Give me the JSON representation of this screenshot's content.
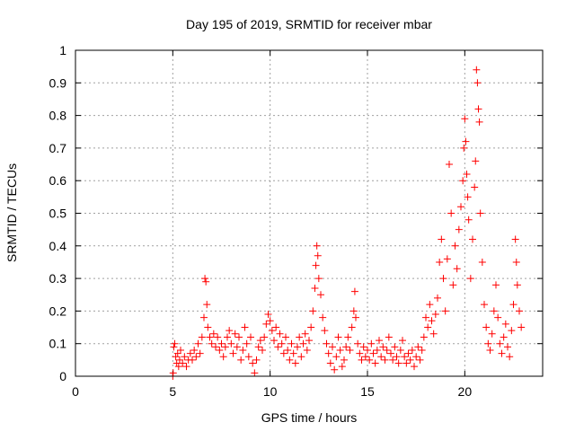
{
  "chart_data": {
    "type": "scatter",
    "title": "Day 195 of 2019, SRMTID for receiver mbar",
    "xlabel": "GPS time / hours",
    "ylabel": "SRMTID / TECUs",
    "xlim": [
      0,
      24
    ],
    "ylim": [
      0,
      1
    ],
    "x_ticks": [
      0,
      5,
      10,
      15,
      20
    ],
    "y_ticks": [
      0,
      0.1,
      0.2,
      0.3,
      0.4,
      0.5,
      0.6,
      0.7,
      0.8,
      0.9,
      1
    ],
    "x_tick_labels": [
      "0",
      "5",
      "10",
      "15",
      "20"
    ],
    "y_tick_labels": [
      "0",
      "0.1",
      "0.2",
      "0.3",
      "0.4",
      "0.5",
      "0.6",
      "0.7",
      "0.8",
      "0.9",
      "1"
    ],
    "grid": true,
    "marker": "+",
    "color": "#ff0000",
    "series": [
      {
        "name": "SRMTID",
        "points": [
          [
            5.0,
            0.0
          ],
          [
            5.02,
            0.01
          ],
          [
            5.05,
            0.09
          ],
          [
            5.1,
            0.1
          ],
          [
            5.15,
            0.06
          ],
          [
            5.2,
            0.04
          ],
          [
            5.25,
            0.07
          ],
          [
            5.3,
            0.03
          ],
          [
            5.35,
            0.05
          ],
          [
            5.4,
            0.08
          ],
          [
            5.5,
            0.04
          ],
          [
            5.6,
            0.06
          ],
          [
            5.7,
            0.03
          ],
          [
            5.8,
            0.05
          ],
          [
            5.9,
            0.07
          ],
          [
            6.0,
            0.05
          ],
          [
            6.1,
            0.08
          ],
          [
            6.2,
            0.06
          ],
          [
            6.3,
            0.1
          ],
          [
            6.4,
            0.07
          ],
          [
            6.5,
            0.12
          ],
          [
            6.6,
            0.18
          ],
          [
            6.65,
            0.3
          ],
          [
            6.7,
            0.29
          ],
          [
            6.75,
            0.22
          ],
          [
            6.8,
            0.15
          ],
          [
            6.9,
            0.12
          ],
          [
            7.0,
            0.1
          ],
          [
            7.1,
            0.13
          ],
          [
            7.2,
            0.09
          ],
          [
            7.3,
            0.12
          ],
          [
            7.4,
            0.08
          ],
          [
            7.5,
            0.1
          ],
          [
            7.6,
            0.06
          ],
          [
            7.7,
            0.09
          ],
          [
            7.8,
            0.12
          ],
          [
            7.9,
            0.14
          ],
          [
            8.0,
            0.1
          ],
          [
            8.1,
            0.07
          ],
          [
            8.2,
            0.13
          ],
          [
            8.3,
            0.09
          ],
          [
            8.4,
            0.12
          ],
          [
            8.5,
            0.05
          ],
          [
            8.6,
            0.08
          ],
          [
            8.7,
            0.15
          ],
          [
            8.8,
            0.1
          ],
          [
            8.9,
            0.06
          ],
          [
            9.0,
            0.12
          ],
          [
            9.1,
            0.04
          ],
          [
            9.2,
            0.01
          ],
          [
            9.3,
            0.05
          ],
          [
            9.4,
            0.09
          ],
          [
            9.5,
            0.11
          ],
          [
            9.6,
            0.08
          ],
          [
            9.7,
            0.12
          ],
          [
            9.8,
            0.16
          ],
          [
            9.9,
            0.19
          ],
          [
            10.0,
            0.17
          ],
          [
            10.1,
            0.14
          ],
          [
            10.2,
            0.11
          ],
          [
            10.3,
            0.15
          ],
          [
            10.4,
            0.09
          ],
          [
            10.5,
            0.13
          ],
          [
            10.6,
            0.1
          ],
          [
            10.7,
            0.07
          ],
          [
            10.8,
            0.12
          ],
          [
            10.9,
            0.08
          ],
          [
            11.0,
            0.05
          ],
          [
            11.1,
            0.1
          ],
          [
            11.2,
            0.07
          ],
          [
            11.3,
            0.04
          ],
          [
            11.4,
            0.09
          ],
          [
            11.5,
            0.12
          ],
          [
            11.6,
            0.06
          ],
          [
            11.7,
            0.1
          ],
          [
            11.8,
            0.13
          ],
          [
            11.9,
            0.08
          ],
          [
            12.0,
            0.11
          ],
          [
            12.1,
            0.15
          ],
          [
            12.2,
            0.2
          ],
          [
            12.3,
            0.27
          ],
          [
            12.35,
            0.34
          ],
          [
            12.4,
            0.4
          ],
          [
            12.45,
            0.37
          ],
          [
            12.5,
            0.3
          ],
          [
            12.6,
            0.25
          ],
          [
            12.7,
            0.18
          ],
          [
            12.8,
            0.14
          ],
          [
            12.9,
            0.1
          ],
          [
            13.0,
            0.07
          ],
          [
            13.1,
            0.04
          ],
          [
            13.2,
            0.09
          ],
          [
            13.3,
            0.02
          ],
          [
            13.4,
            0.06
          ],
          [
            13.5,
            0.12
          ],
          [
            13.6,
            0.08
          ],
          [
            13.7,
            0.03
          ],
          [
            13.8,
            0.05
          ],
          [
            13.9,
            0.09
          ],
          [
            14.0,
            0.12
          ],
          [
            14.1,
            0.08
          ],
          [
            14.2,
            0.15
          ],
          [
            14.3,
            0.2
          ],
          [
            14.35,
            0.26
          ],
          [
            14.4,
            0.18
          ],
          [
            14.5,
            0.1
          ],
          [
            14.6,
            0.07
          ],
          [
            14.7,
            0.05
          ],
          [
            14.8,
            0.09
          ],
          [
            14.9,
            0.06
          ],
          [
            15.0,
            0.08
          ],
          [
            15.1,
            0.05
          ],
          [
            15.2,
            0.1
          ],
          [
            15.3,
            0.07
          ],
          [
            15.4,
            0.04
          ],
          [
            15.5,
            0.08
          ],
          [
            15.6,
            0.11
          ],
          [
            15.7,
            0.06
          ],
          [
            15.8,
            0.09
          ],
          [
            15.9,
            0.05
          ],
          [
            16.0,
            0.08
          ],
          [
            16.1,
            0.12
          ],
          [
            16.2,
            0.07
          ],
          [
            16.3,
            0.05
          ],
          [
            16.4,
            0.09
          ],
          [
            16.5,
            0.06
          ],
          [
            16.6,
            0.04
          ],
          [
            16.7,
            0.08
          ],
          [
            16.8,
            0.11
          ],
          [
            16.9,
            0.06
          ],
          [
            17.0,
            0.04
          ],
          [
            17.1,
            0.07
          ],
          [
            17.2,
            0.05
          ],
          [
            17.3,
            0.08
          ],
          [
            17.4,
            0.03
          ],
          [
            17.5,
            0.06
          ],
          [
            17.6,
            0.09
          ],
          [
            17.7,
            0.05
          ],
          [
            17.8,
            0.08
          ],
          [
            17.9,
            0.12
          ],
          [
            18.0,
            0.18
          ],
          [
            18.1,
            0.15
          ],
          [
            18.2,
            0.22
          ],
          [
            18.3,
            0.17
          ],
          [
            18.4,
            0.13
          ],
          [
            18.5,
            0.19
          ],
          [
            18.6,
            0.24
          ],
          [
            18.7,
            0.35
          ],
          [
            18.8,
            0.42
          ],
          [
            18.9,
            0.3
          ],
          [
            19.0,
            0.2
          ],
          [
            19.1,
            0.36
          ],
          [
            19.2,
            0.65
          ],
          [
            19.3,
            0.5
          ],
          [
            19.4,
            0.28
          ],
          [
            19.5,
            0.4
          ],
          [
            19.6,
            0.33
          ],
          [
            19.7,
            0.45
          ],
          [
            19.8,
            0.52
          ],
          [
            19.9,
            0.6
          ],
          [
            19.95,
            0.7
          ],
          [
            20.0,
            0.79
          ],
          [
            20.05,
            0.72
          ],
          [
            20.1,
            0.62
          ],
          [
            20.15,
            0.55
          ],
          [
            20.2,
            0.48
          ],
          [
            20.3,
            0.3
          ],
          [
            20.4,
            0.42
          ],
          [
            20.5,
            0.58
          ],
          [
            20.55,
            0.66
          ],
          [
            20.6,
            0.94
          ],
          [
            20.65,
            0.9
          ],
          [
            20.7,
            0.82
          ],
          [
            20.75,
            0.78
          ],
          [
            20.8,
            0.5
          ],
          [
            20.9,
            0.35
          ],
          [
            21.0,
            0.22
          ],
          [
            21.1,
            0.15
          ],
          [
            21.2,
            0.1
          ],
          [
            21.3,
            0.08
          ],
          [
            21.4,
            0.13
          ],
          [
            21.5,
            0.2
          ],
          [
            21.6,
            0.28
          ],
          [
            21.7,
            0.18
          ],
          [
            21.8,
            0.1
          ],
          [
            21.9,
            0.07
          ],
          [
            22.0,
            0.12
          ],
          [
            22.1,
            0.16
          ],
          [
            22.2,
            0.09
          ],
          [
            22.3,
            0.06
          ],
          [
            22.4,
            0.14
          ],
          [
            22.5,
            0.22
          ],
          [
            22.6,
            0.42
          ],
          [
            22.65,
            0.35
          ],
          [
            22.7,
            0.28
          ],
          [
            22.8,
            0.2
          ],
          [
            22.9,
            0.15
          ]
        ]
      }
    ]
  }
}
